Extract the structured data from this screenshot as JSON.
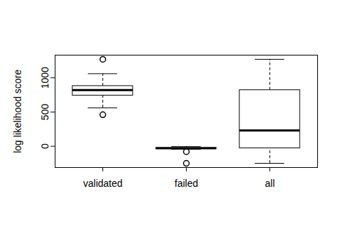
{
  "chart_data": {
    "type": "box",
    "y_label": "log likelihood score",
    "categories": [
      "validated",
      "failed",
      "all"
    ],
    "boxes": [
      {
        "min": 560,
        "q1": 740,
        "median": 820,
        "q3": 880,
        "max": 1060,
        "outliers": [
          460,
          1270
        ]
      },
      {
        "min": -45,
        "q1": -40,
        "median": -30,
        "q3": -25,
        "max": -5,
        "outliers": [
          -80,
          -250
        ]
      },
      {
        "min": -250,
        "q1": -30,
        "median": 230,
        "q3": 820,
        "max": 1270,
        "outliers": []
      }
    ],
    "color": "#000000",
    "ylim": [
      -311,
      1331
    ],
    "yticks": [
      0,
      500,
      1000
    ],
    "grid": false
  }
}
